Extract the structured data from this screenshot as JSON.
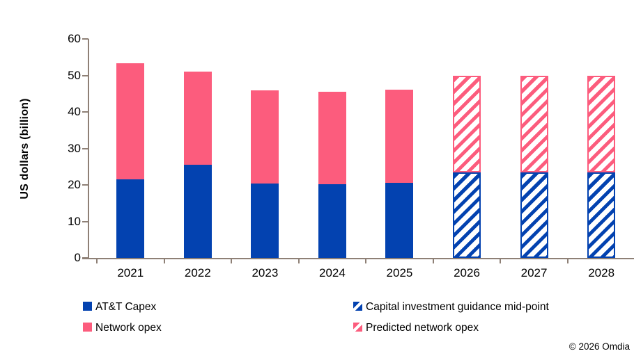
{
  "page": {
    "background": "#ffffff"
  },
  "footer": {
    "copyright": "© 2026 Omdia"
  },
  "chart_data": {
    "type": "bar",
    "stacked": true,
    "title": "",
    "categories": [
      "2021",
      "2022",
      "2023",
      "2024",
      "2025",
      "2026",
      "2027",
      "2028"
    ],
    "series": [
      {
        "name": "AT&T Capex",
        "style": "solid",
        "color": "#0342b0",
        "values": [
          21.5,
          25.6,
          20.4,
          20.1,
          20.6,
          null,
          null,
          null
        ]
      },
      {
        "name": "Network opex",
        "style": "solid",
        "color": "#fc5c7d",
        "values": [
          31.8,
          25.4,
          25.5,
          25.4,
          25.5,
          null,
          null,
          null
        ]
      },
      {
        "name": "Capital investment guidance mid-point",
        "style": "hatched",
        "color": "#0342b0",
        "values": [
          null,
          null,
          null,
          null,
          null,
          23.4,
          23.4,
          23.4
        ]
      },
      {
        "name": "Predicted network opex",
        "style": "hatched",
        "color": "#fc5c7d",
        "values": [
          null,
          null,
          null,
          null,
          null,
          26.6,
          26.6,
          26.6
        ]
      }
    ],
    "xlabel": "",
    "ylabel": "US dollars (billion)",
    "ylim": [
      0,
      60
    ],
    "yticks": [
      0,
      10,
      20,
      30,
      40,
      50,
      60
    ],
    "legend_position": "bottom",
    "axis_color": "#8e8076",
    "text_color": "#000000"
  }
}
